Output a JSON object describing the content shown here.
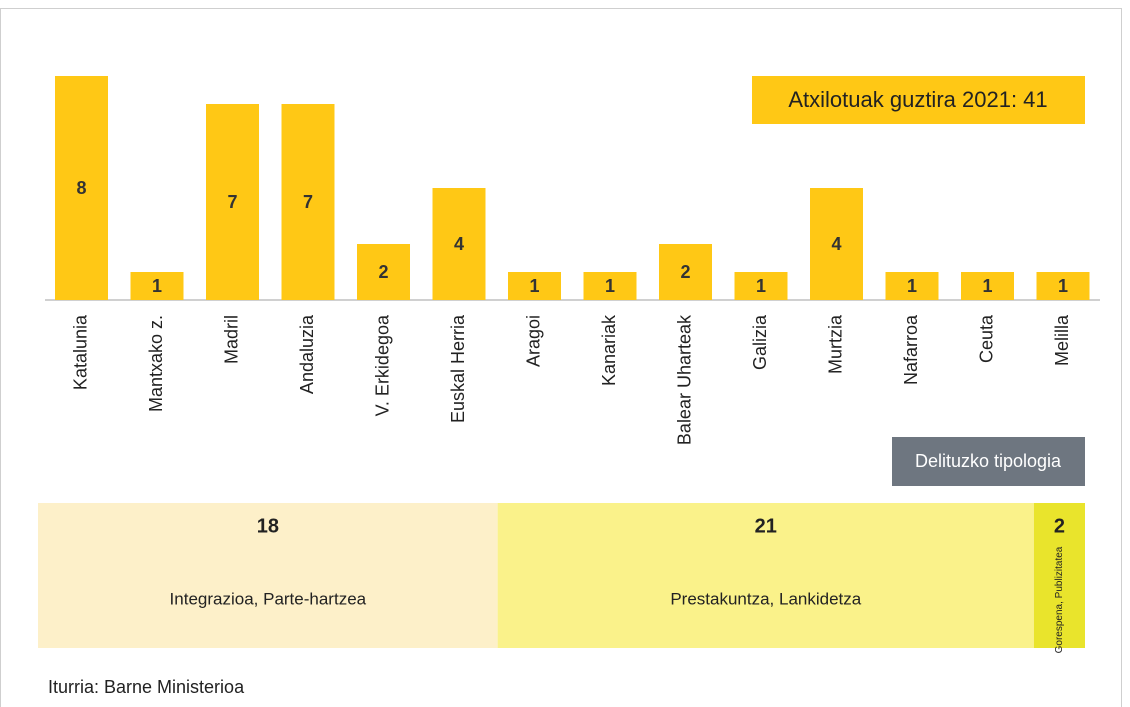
{
  "chart_data": [
    {
      "type": "bar",
      "annotation": "Atxilotuak guztira 2021: 41",
      "categories": [
        "Katalunia",
        "Mantxako z.",
        "Madril",
        "Andaluzia",
        "V. Erkidegoa",
        "Euskal Herria",
        "Aragoi",
        "Kanariak",
        "Balear Uharteak",
        "Galizia",
        "Murtzia",
        "Nafarroa",
        "Ceuta",
        "Melilla"
      ],
      "values": [
        8,
        1,
        7,
        7,
        2,
        4,
        1,
        1,
        2,
        1,
        4,
        1,
        1,
        1
      ],
      "color": "#ffc815"
    },
    {
      "type": "stacked-bar",
      "title": "Delituzko tipologia",
      "categories": [
        "Integrazioa, Parte-hartzea",
        "Prestakuntza, Lankidetza",
        "Gorespena, Publizitatea"
      ],
      "values": [
        18,
        21,
        2
      ],
      "colors": [
        "#fdf0c9",
        "#faf28a",
        "#e9e42c"
      ]
    }
  ],
  "source": "Iturria: Barne Ministerioa"
}
